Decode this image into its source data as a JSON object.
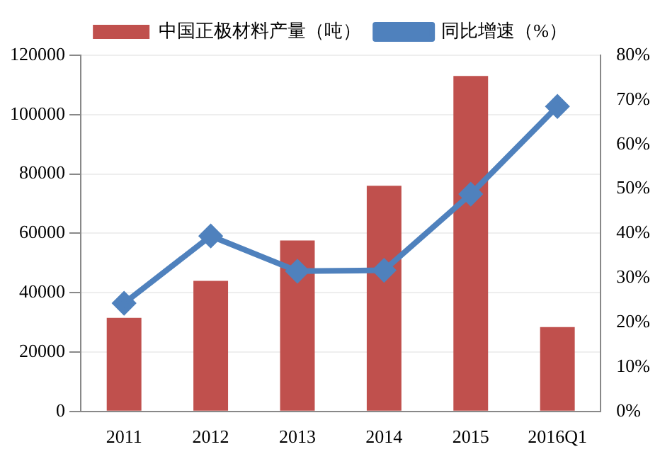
{
  "chart_data": {
    "type": "bar",
    "categories": [
      "2011",
      "2012",
      "2013",
      "2014",
      "2015",
      "2016Q1"
    ],
    "series": [
      {
        "name": "中国正极材料产量（吨）",
        "color": "#c0504d",
        "values": [
          31500,
          44000,
          57600,
          76000,
          113000,
          28400
        ]
      },
      {
        "name": "同比增速（%）",
        "type": "line",
        "axis": "y2",
        "color": "#4f81bd",
        "marker": "diamond",
        "values": [
          24.3,
          39.4,
          31.5,
          31.7,
          48.8,
          68.5
        ]
      }
    ],
    "ylim": [
      0,
      120000
    ],
    "yticks": [
      0,
      20000,
      40000,
      60000,
      80000,
      100000,
      120000
    ],
    "y2lim": [
      0,
      80
    ],
    "y2ticks": [
      {
        "value": 0,
        "label": "0%"
      },
      {
        "value": 10,
        "label": "10%"
      },
      {
        "value": 20,
        "label": "20%"
      },
      {
        "value": 30,
        "label": "30%"
      },
      {
        "value": 40,
        "label": "40%"
      },
      {
        "value": 50,
        "label": "50%"
      },
      {
        "value": 60,
        "label": "60%"
      },
      {
        "value": 70,
        "label": "70%"
      },
      {
        "value": 80,
        "label": "80%"
      }
    ],
    "grid": "y",
    "legend": "top"
  }
}
